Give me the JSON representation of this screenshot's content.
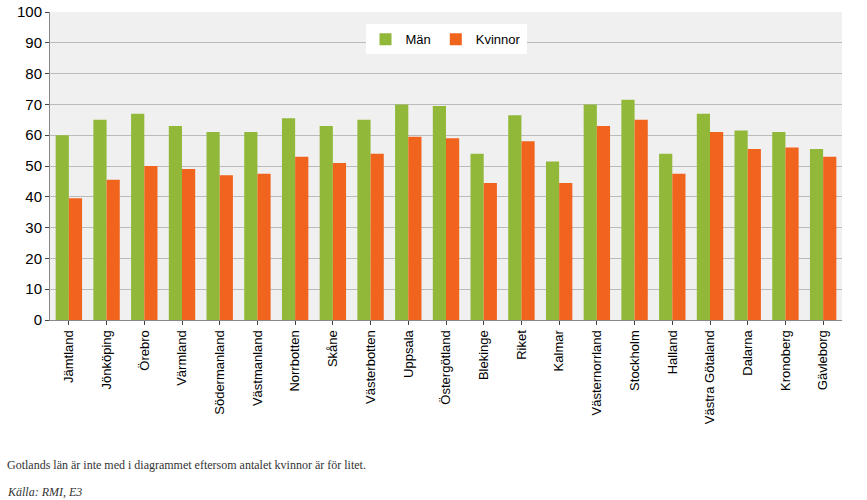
{
  "chart_data": {
    "type": "bar",
    "categories": [
      "Jämtland",
      "Jönköping",
      "Örebro",
      "Värmland",
      "Södermanland",
      "Västmanland",
      "Norrbotten",
      "Skåne",
      "Västerbotten",
      "Uppsala",
      "Östergötland",
      "Blekinge",
      "Riket",
      "Kalmar",
      "Västernorrland",
      "Stockholm",
      "Halland",
      "Västra Götaland",
      "Dalarna",
      "Kronoberg",
      "Gävleborg"
    ],
    "series": [
      {
        "name": "Män",
        "color": "#92b83a",
        "values": [
          60,
          65,
          67,
          63,
          61,
          61,
          65.5,
          63,
          65,
          70,
          69.5,
          54,
          66.5,
          51.5,
          70,
          71.5,
          54,
          67,
          61.5,
          61,
          55.5
        ]
      },
      {
        "name": "Kvinnor",
        "color": "#f0641e",
        "values": [
          39.5,
          45.5,
          50,
          49,
          47,
          47.5,
          53,
          51,
          54,
          59.5,
          59,
          44.5,
          58,
          44.5,
          63,
          65,
          47.5,
          61,
          55.5,
          56,
          53
        ]
      }
    ],
    "ylim": [
      0,
      100
    ],
    "yticks": [
      0,
      10,
      20,
      30,
      40,
      50,
      60,
      70,
      80,
      90,
      100
    ],
    "grid": true,
    "legend": "top",
    "annotations": [
      "Gotlands län är inte med i diagrammet eftersom antalet kvinnor är för litet.",
      "Källa: RMI, E3"
    ]
  }
}
